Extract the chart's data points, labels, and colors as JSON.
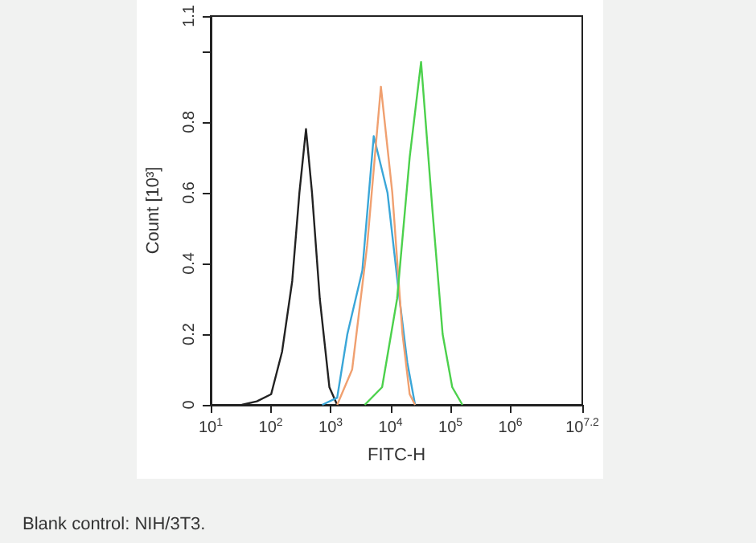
{
  "chart_data": {
    "type": "line",
    "xlabel": "FITC-H",
    "ylabel": "Count [10³]",
    "log": "x",
    "xlim": [
      10,
      15848931.92
    ],
    "xticks": [
      {
        "value": 10,
        "label": "10$^{1}$"
      },
      {
        "value": 100,
        "label": "10$^{2}$"
      },
      {
        "value": 1000,
        "label": "10$^{3}$"
      },
      {
        "value": 10000,
        "label": "10$^{4}$"
      },
      {
        "value": 100000,
        "label": "10$^{5}$"
      },
      {
        "value": 1000000,
        "label": "10$^{6}$"
      },
      {
        "value": 15848931.92,
        "label": "10$^{7.2}$"
      }
    ],
    "ylim": [
      0,
      1.1
    ],
    "yticks": [
      0,
      0.2,
      0.4,
      0.6,
      0.8,
      {
        "value": 1,
        "label": null
      },
      1.1
    ],
    "grid": false,
    "marker": "none",
    "line_style": "solid",
    "annotations": [
      "Blank control: NIH/3T3."
    ],
    "series": [
      {
        "color": "#222222",
        "x": [
          33,
          59,
          102,
          155,
          229,
          302,
          389,
          490,
          661,
          955,
          1288
        ],
        "values": [
          0,
          0.01,
          0.03,
          0.15,
          0.35,
          0.6,
          0.78,
          0.6,
          0.3,
          0.05,
          0
        ]
      },
      {
        "color": "#3aa6d8",
        "x": [
          724,
          1288,
          1905,
          3388,
          5248,
          8913,
          14125,
          19055,
          25704
        ],
        "values": [
          0,
          0.02,
          0.2,
          0.38,
          0.76,
          0.6,
          0.3,
          0.12,
          0
        ]
      },
      {
        "color": "#f0a070",
        "x": [
          1288,
          2291,
          4074,
          6918,
          10715,
          15849,
          20893,
          25704
        ],
        "values": [
          0,
          0.1,
          0.45,
          0.9,
          0.6,
          0.2,
          0.03,
          0
        ]
      },
      {
        "color": "#4cd14c",
        "x": [
          3715,
          7244,
          12882,
          20893,
          32359,
          50119,
          74131,
          107152,
          158489
        ],
        "values": [
          0,
          0.05,
          0.3,
          0.7,
          0.97,
          0.55,
          0.2,
          0.05,
          0
        ]
      }
    ]
  }
}
